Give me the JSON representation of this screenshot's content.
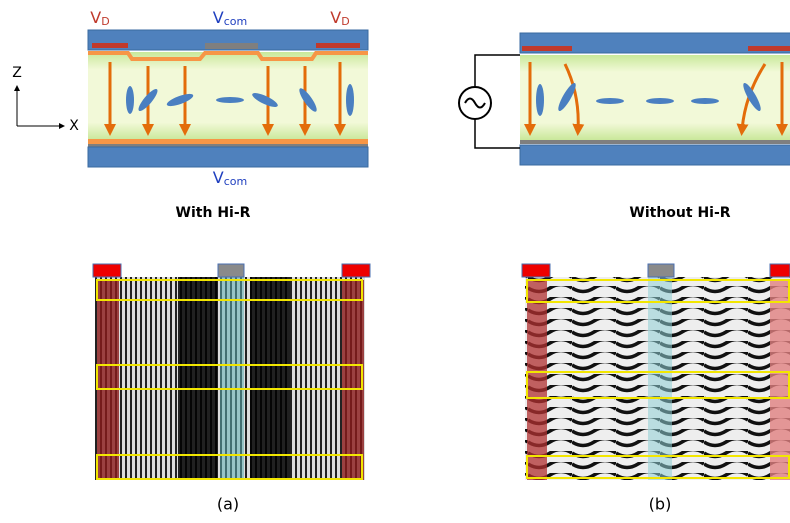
{
  "panel_a": {
    "top_labels": [
      {
        "main": "V",
        "sub": "D"
      },
      {
        "main": "V",
        "sub": "com"
      },
      {
        "main": "V",
        "sub": "D"
      }
    ],
    "bottom_label": {
      "main": "V",
      "sub": "com"
    },
    "axes": {
      "z": "Z",
      "x": "X"
    },
    "caption": "With Hi-R",
    "label": "(a)"
  },
  "panel_b": {
    "caption": "Without Hi-R",
    "label": "(b)"
  }
}
